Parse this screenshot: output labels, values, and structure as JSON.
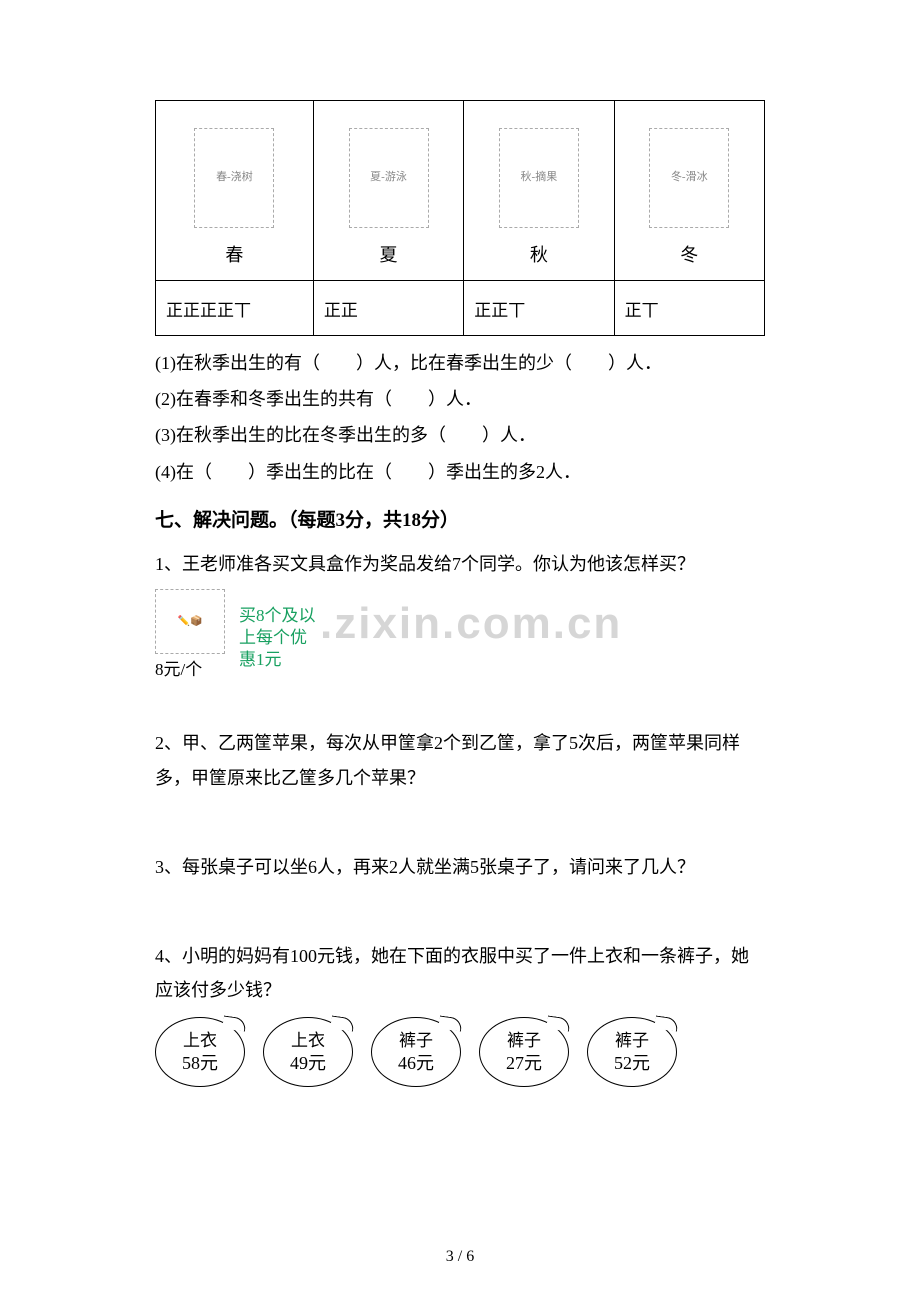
{
  "seasons_table": {
    "columns": [
      {
        "label": "春",
        "img_alt": "春-浇树",
        "tally": "正正正正丅"
      },
      {
        "label": "夏",
        "img_alt": "夏-游泳",
        "tally": "正正"
      },
      {
        "label": "秋",
        "img_alt": "秋-摘果",
        "tally": "正正丅"
      },
      {
        "label": "冬",
        "img_alt": "冬-滑冰",
        "tally": "正丅"
      }
    ]
  },
  "questions": {
    "q1": "(1)在秋季出生的有（　　）人，比在春季出生的少（　　）人．",
    "q2": "(2)在春季和冬季出生的共有（　　）人．",
    "q3": "(3)在秋季出生的比在冬季出生的多（　　）人．",
    "q4": "(4)在（　　）季出生的比在（　　）季出生的多2人．"
  },
  "section7": {
    "header": "七、解决问题。（每题3分，共18分）",
    "p1": "1、王老师准各买文具盒作为奖品发给7个同学。你认为他该怎样买？",
    "p1_price": "8元/个",
    "p1_promo_l1": "买8个及以",
    "p1_promo_l2": "上每个优",
    "p1_promo_l3": "惠1元",
    "p2": "2、甲、乙两筐苹果，每次从甲筐拿2个到乙筐，拿了5次后，两筐苹果同样多，甲筐原来比乙筐多几个苹果？",
    "p3": "3、每张桌子可以坐6人，再来2人就坐满5张桌子了，请问来了几人？",
    "p4": "4、小明的妈妈有100元钱，她在下面的衣服中买了一件上衣和一条裤子，她应该付多少钱？"
  },
  "watermark": ".zixin.com.cn",
  "clothes": [
    {
      "name": "上衣",
      "price": "58元"
    },
    {
      "name": "上衣",
      "price": "49元"
    },
    {
      "name": "裤子",
      "price": "46元"
    },
    {
      "name": "裤子",
      "price": "27元"
    },
    {
      "name": "裤子",
      "price": "52元"
    }
  ],
  "page_footer": "3 / 6",
  "colors": {
    "text": "#000000",
    "promo": "#18a060",
    "watermark": "#d6d6d6",
    "background": "#ffffff"
  }
}
